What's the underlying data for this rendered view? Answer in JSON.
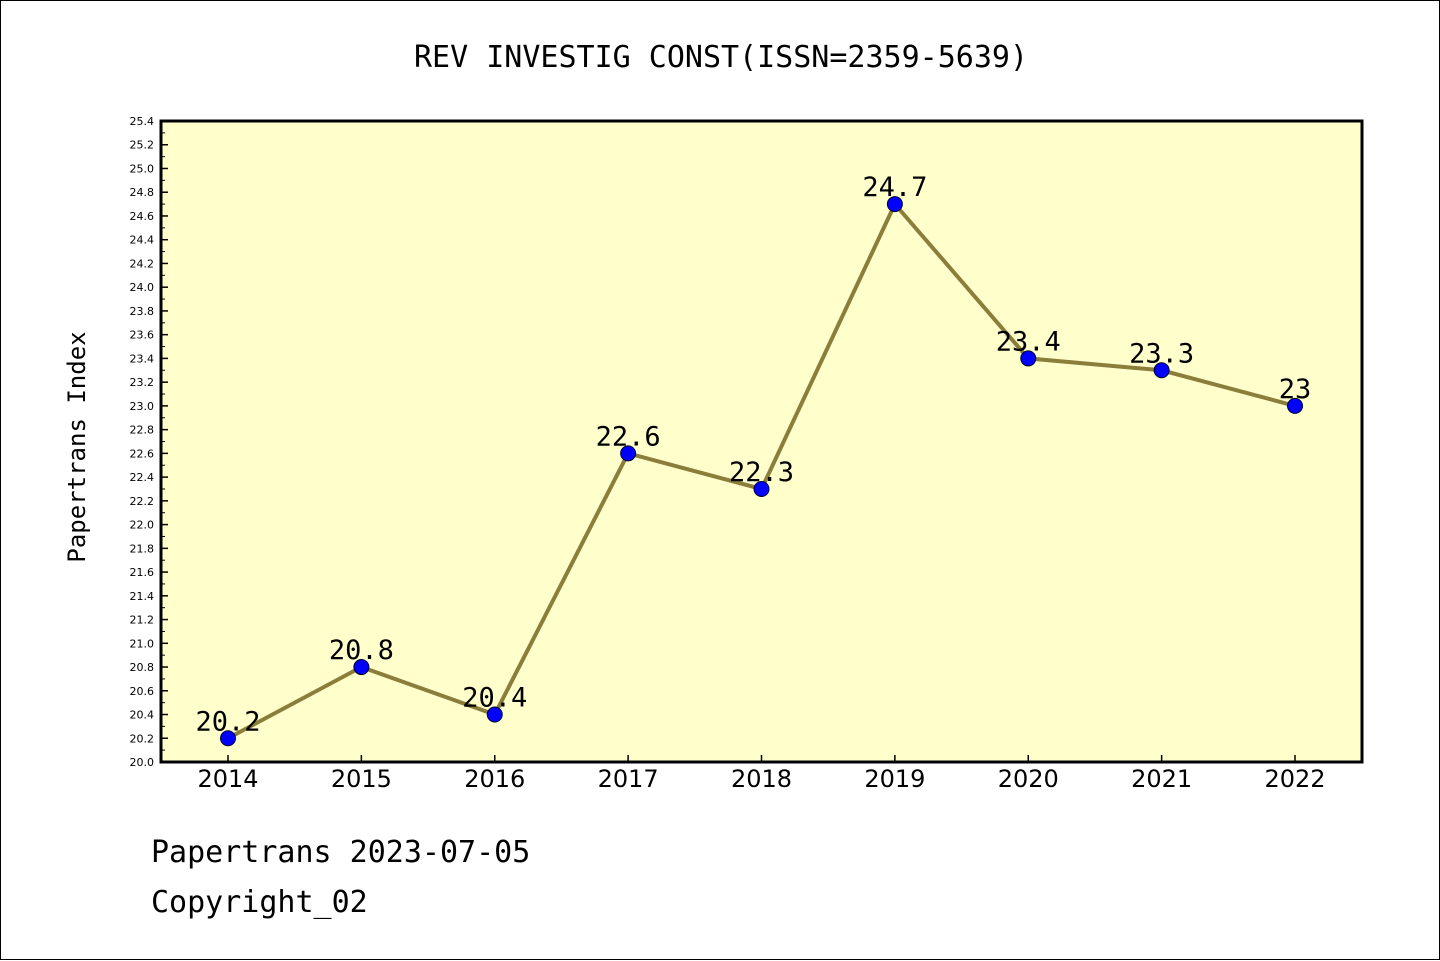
{
  "chart_data": {
    "type": "line",
    "title": "REV INVESTIG CONST(ISSN=2359-5639)",
    "xlabel": "",
    "ylabel": "Papertrans Index",
    "x": [
      "2014",
      "2015",
      "2016",
      "2017",
      "2018",
      "2019",
      "2020",
      "2021",
      "2022"
    ],
    "series": [
      {
        "name": "Papertrans Index",
        "values": [
          20.2,
          20.8,
          20.4,
          22.6,
          22.3,
          24.7,
          23.4,
          23.3,
          23.0
        ],
        "labels": [
          "20.2",
          "20.8",
          "20.4",
          "22.6",
          "22.3",
          "24.7",
          "23.4",
          "23.3",
          "23"
        ]
      }
    ],
    "ylim": [
      20.0,
      25.4
    ],
    "ytick_step": 0.2,
    "grid": false,
    "legend": "none",
    "colors": {
      "plot_background": "#ffffcc",
      "line": "#8b7d3a",
      "marker": "#0000ff",
      "axis": "#000000"
    }
  },
  "footer": {
    "date_line": "Papertrans 2023-07-05",
    "copyright_line": "Copyright_02"
  }
}
